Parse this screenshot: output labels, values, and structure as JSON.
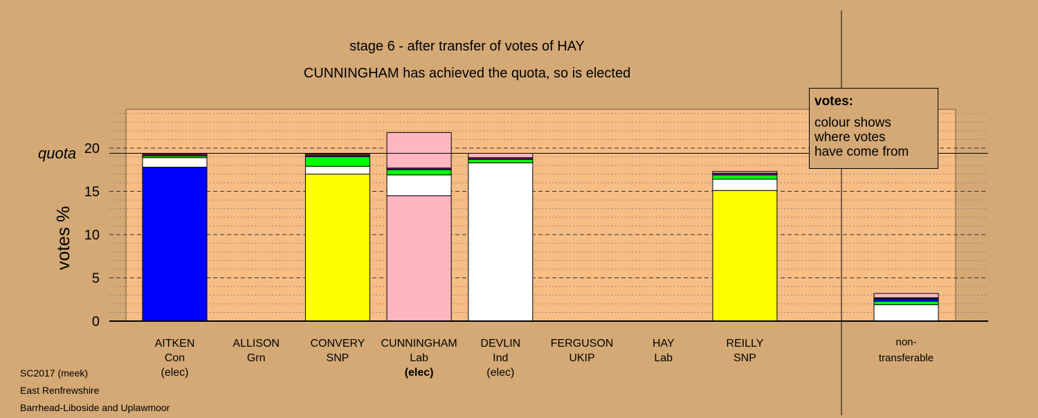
{
  "footer": {
    "line1": "SC2017 (meek)",
    "line2": "East Renfrewshire",
    "line3": "Barrhead-Liboside and Uplawmoor"
  },
  "legend": {
    "title": "votes:",
    "lines": [
      "colour shows",
      "where votes",
      "have come from"
    ]
  },
  "chart_data": {
    "type": "bar",
    "stacked": true,
    "title": "stage 6 - after transfer of votes of HAY",
    "subtitle": "CUNNINGHAM has achieved the quota, so is elected",
    "ylabel": "votes %",
    "ylim": [
      0,
      24.5
    ],
    "yticks": [
      0,
      5,
      10,
      15,
      20
    ],
    "quota": 19.4,
    "quota_label": "quota",
    "grid": true,
    "colors": {
      "Con": "#0000FF",
      "SNP": "#FFFF00",
      "Lab": "#FFB6C1",
      "Ind": "#FFFFFF",
      "Grn": "#00FF00",
      "other": "#800080"
    },
    "candidates": [
      {
        "name": "AITKEN",
        "party": "Con",
        "status": "(elec)",
        "bold": false,
        "segments": [
          {
            "from": "Con",
            "value": 17.8
          },
          {
            "from": "Ind",
            "value": 1.1
          },
          {
            "from": "Grn",
            "value": 0.2
          },
          {
            "from": "other",
            "value": 0.2
          },
          {
            "from": "Lab",
            "value": 0.1
          }
        ]
      },
      {
        "name": "ALLISON",
        "party": "Grn",
        "status": "",
        "bold": false,
        "segments": []
      },
      {
        "name": "CONVERY",
        "party": "SNP",
        "status": "",
        "bold": false,
        "segments": [
          {
            "from": "SNP",
            "value": 17.0
          },
          {
            "from": "Ind",
            "value": 0.9
          },
          {
            "from": "Grn",
            "value": 1.1
          },
          {
            "from": "other",
            "value": 0.2
          },
          {
            "from": "Lab",
            "value": 0.1
          }
        ]
      },
      {
        "name": "CUNNINGHAM",
        "party": "Lab",
        "status": "(elec)",
        "bold": true,
        "segments": [
          {
            "from": "Lab",
            "value": 14.5
          },
          {
            "from": "Ind",
            "value": 2.4
          },
          {
            "from": "Grn",
            "value": 0.6
          },
          {
            "from": "other",
            "value": 0.2
          },
          {
            "from": "Lab",
            "value": 4.1
          }
        ]
      },
      {
        "name": "DEVLIN",
        "party": "Ind",
        "status": "(elec)",
        "bold": false,
        "segments": [
          {
            "from": "Ind",
            "value": 18.3
          },
          {
            "from": "Grn",
            "value": 0.4
          },
          {
            "from": "other",
            "value": 0.2
          },
          {
            "from": "Lab",
            "value": 0.5
          }
        ]
      },
      {
        "name": "FERGUSON",
        "party": "UKIP",
        "status": "",
        "bold": false,
        "segments": []
      },
      {
        "name": "HAY",
        "party": "Lab",
        "status": "",
        "bold": false,
        "segments": []
      },
      {
        "name": "REILLY",
        "party": "SNP",
        "status": "",
        "bold": false,
        "segments": [
          {
            "from": "SNP",
            "value": 15.1
          },
          {
            "from": "Ind",
            "value": 1.3
          },
          {
            "from": "Grn",
            "value": 0.5
          },
          {
            "from": "other",
            "value": 0.2
          },
          {
            "from": "Lab",
            "value": 0.2
          }
        ]
      }
    ],
    "nontransferable": {
      "label_line1": "non-",
      "label_line2": "transferable",
      "segments": [
        {
          "from": "Ind",
          "value": 1.9
        },
        {
          "from": "Grn",
          "value": 0.4
        },
        {
          "from": "Con",
          "value": 0.3
        },
        {
          "from": "other",
          "value": 0.1
        },
        {
          "from": "Lab",
          "value": 0.5
        }
      ]
    }
  }
}
